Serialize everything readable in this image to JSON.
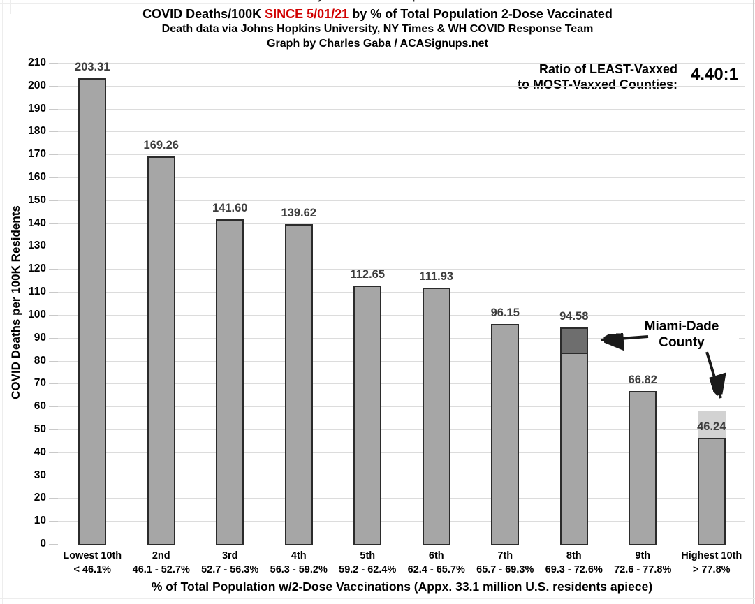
{
  "title": {
    "line1_prefix": "COVID Deaths/100K ",
    "line1_red": "SINCE 5/01/21",
    "line1_suffix": " by % of Total Population 2-Dose Vaccinated",
    "line2": "Death data via Johns Hopkins University, NY Times & WH COVID Response Team",
    "line3": "Graph by Charles Gaba / ACASignups.net",
    "highlight_color": "#d10000"
  },
  "ratio_callout": {
    "line1": "Ratio of LEAST-Vaxxed",
    "line2": "to MOST-Vaxxed Counties:",
    "value": "4.40:1"
  },
  "annotation": {
    "line1": "Miami-Dade",
    "line2": "County"
  },
  "chart_data": {
    "type": "bar",
    "title": "COVID Deaths/100K SINCE 5/01/21 by % of Total Population 2-Dose Vaccinated",
    "subtitle": "Death data via Johns Hopkins University, NY Times & WH COVID Response Team",
    "credit": "Graph by Charles Gaba / ACASignups.net",
    "categories": [
      "Lowest 10th",
      "2nd",
      "3rd",
      "4th",
      "5th",
      "6th",
      "7th",
      "8th",
      "9th",
      "Highest 10th"
    ],
    "category_ranges": [
      "< 46.1%",
      "46.1 - 52.7%",
      "52.7 - 56.3%",
      "56.3 - 59.2%",
      "59.2 - 62.4%",
      "62.4 - 65.7%",
      "65.7 - 69.3%",
      "69.3 - 72.6%",
      "72.6 - 77.8%",
      "> 77.8%"
    ],
    "values": [
      203.31,
      169.26,
      141.6,
      139.62,
      112.65,
      111.93,
      96.15,
      94.58,
      66.82,
      46.24
    ],
    "xlabel": "% of Total Population w/2-Dose Vaccinations (Appx. 33.1 million U.S. residents apiece)",
    "ylabel": "COVID Deaths per 100K Residents",
    "ylim": [
      0,
      210
    ],
    "ytick_step": 10,
    "grid": true,
    "legend": false,
    "bar_color": "#a6a6a6",
    "bar_border_color": "#2b2b2b",
    "grid_color": "#dcdcdc",
    "value_label_color": "#3d3d3d",
    "highlight_segments": [
      {
        "category_index": 7,
        "from": 83,
        "to": 94.58,
        "color": "#6e6e6e",
        "bordered": true,
        "meaning": "Miami-Dade County"
      },
      {
        "category_index": 9,
        "from": 46.24,
        "to": 58,
        "color": "#d2d2d2",
        "bordered": false,
        "meaning": "Miami-Dade County"
      }
    ]
  }
}
